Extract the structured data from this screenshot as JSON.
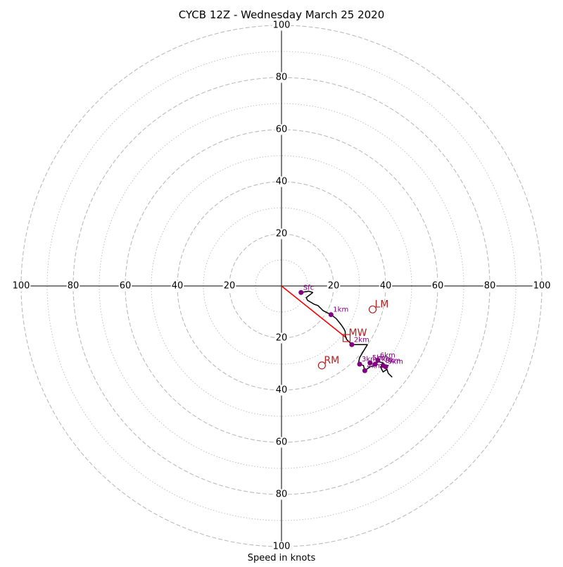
{
  "chart_data": {
    "type": "hodograph",
    "title": "CYCB 12Z - Wednesday March 25 2020",
    "xlabel": "Speed in knots",
    "units": "knots",
    "max_speed": 100,
    "ring_step_major": 20,
    "ring_step_minor": 10,
    "grid": true,
    "tick_labels": {
      "top": [
        "20",
        "40",
        "60",
        "80",
        "100"
      ],
      "bottom": [
        "20",
        "40",
        "60",
        "80",
        "100"
      ],
      "left": [
        "20",
        "40",
        "60",
        "80",
        "100"
      ],
      "right": [
        "20",
        "40",
        "60",
        "80",
        "100"
      ]
    },
    "wind_profile": [
      [
        7.5,
        -2.5
      ],
      [
        10.5,
        -2
      ],
      [
        12,
        -2.5
      ],
      [
        9.5,
        -4.5
      ],
      [
        10,
        -5.5
      ],
      [
        12.5,
        -7
      ],
      [
        14,
        -7.5
      ],
      [
        16,
        -9.5
      ],
      [
        19,
        -11
      ],
      [
        21,
        -12.5
      ],
      [
        23,
        -15
      ],
      [
        24,
        -16.5
      ],
      [
        24.5,
        -17.5
      ],
      [
        24.5,
        -19
      ],
      [
        25,
        -20.5
      ],
      [
        26.5,
        -22
      ],
      [
        27,
        -22.5
      ],
      [
        33,
        -22.5
      ],
      [
        31.5,
        -25
      ],
      [
        30,
        -27.5
      ],
      [
        29.5,
        -30
      ],
      [
        31.5,
        -30.5
      ],
      [
        32,
        -32.5
      ],
      [
        34,
        -31
      ],
      [
        36,
        -30.5
      ],
      [
        37,
        -29
      ],
      [
        39,
        -29.5
      ],
      [
        40,
        -31
      ],
      [
        41,
        -30.5
      ],
      [
        38,
        -31
      ],
      [
        39,
        -33
      ],
      [
        40.5,
        -32
      ],
      [
        41,
        -33.5
      ],
      [
        42.5,
        -35
      ]
    ],
    "height_markers": [
      {
        "label": "Sfc",
        "x": 7.5,
        "y": -2.5
      },
      {
        "label": "1km",
        "x": 19,
        "y": -11
      },
      {
        "label": "2km",
        "x": 27,
        "y": -22.5
      },
      {
        "label": "3km",
        "x": 30,
        "y": -30
      },
      {
        "label": "4km",
        "x": 32,
        "y": -32.5
      },
      {
        "label": "5km",
        "x": 34,
        "y": -29.5
      },
      {
        "label": "6km",
        "x": 37,
        "y": -28.5
      },
      {
        "label": "7km",
        "x": 36,
        "y": -30
      },
      {
        "label": "8km",
        "x": 39,
        "y": -30.5
      },
      {
        "label": "9km",
        "x": 40,
        "y": -31
      }
    ],
    "storm_motion": [
      {
        "label": "LM",
        "x": 35,
        "y": -9,
        "symbol": "circle"
      },
      {
        "label": "MW",
        "x": 25,
        "y": -20,
        "symbol": "square"
      },
      {
        "label": "RM",
        "x": 15.5,
        "y": -30.5,
        "symbol": "circle"
      }
    ],
    "shear_vector": {
      "from": [
        0,
        0
      ],
      "to": [
        25,
        -20
      ]
    },
    "colors": {
      "profile": "#000000",
      "markers": "#800080",
      "storm_motion": "#b22222",
      "shear_line": "#ff0000",
      "grid": "#bbbbbb"
    }
  }
}
